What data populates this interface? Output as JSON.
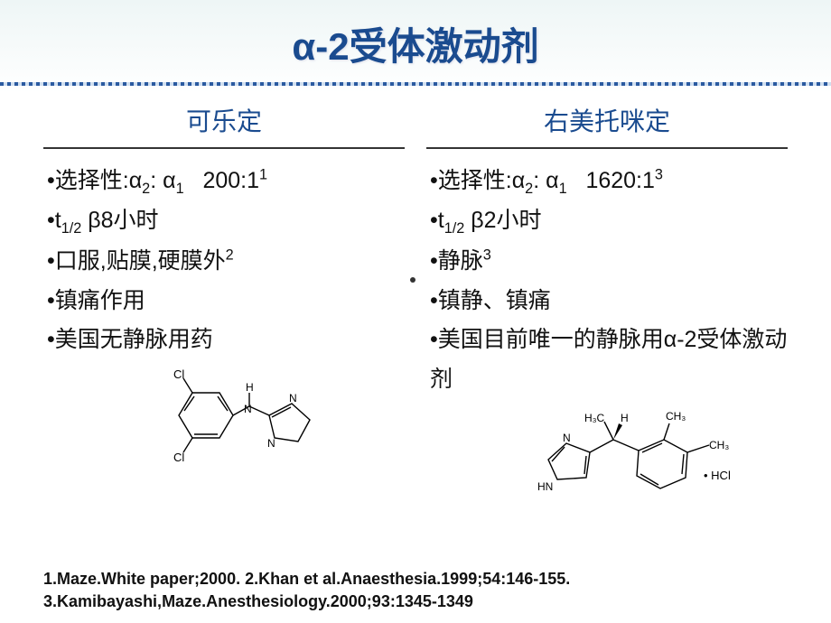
{
  "title": "α-2受体激动剂",
  "columns": {
    "left": {
      "header": "可乐定",
      "items": [
        {
          "pre": "•选择性:α",
          "sub1": "2",
          "mid": ": α",
          "sub2": "1",
          "post": "   200:1",
          "sup": "1"
        },
        {
          "pre": "•t",
          "sub1": "1/2",
          "mid": " β8小时",
          "sub2": "",
          "post": "",
          "sup": ""
        },
        {
          "pre": "•口服,贴膜,硬膜外",
          "sub1": "",
          "mid": "",
          "sub2": "",
          "post": "",
          "sup": "2"
        },
        {
          "pre": "•镇痛作用",
          "sub1": "",
          "mid": "",
          "sub2": "",
          "post": "",
          "sup": ""
        },
        {
          "pre": "•美国无静脉用药",
          "sub1": "",
          "mid": "",
          "sub2": "",
          "post": "",
          "sup": ""
        }
      ]
    },
    "right": {
      "header": "右美托咪定",
      "items": [
        {
          "pre": "•选择性:α",
          "sub1": "2",
          "mid": ": α",
          "sub2": "1",
          "post": "   1620:1",
          "sup": "3"
        },
        {
          "pre": "•t",
          "sub1": "1/2",
          "mid": " β2小时",
          "sub2": "",
          "post": "",
          "sup": ""
        },
        {
          "pre": "•静脉",
          "sub1": "",
          "mid": "",
          "sub2": "",
          "post": "",
          "sup": "3"
        },
        {
          "pre": "•镇静、镇痛",
          "sub1": "",
          "mid": "",
          "sub2": "",
          "post": "",
          "sup": ""
        },
        {
          "pre": "•美国目前唯一的静脉用α-2受体激动剂",
          "sub1": "",
          "mid": "",
          "sub2": "",
          "post": "",
          "sup": ""
        }
      ]
    }
  },
  "structures": {
    "left": {
      "labels": {
        "cl1": "Cl",
        "cl2": "Cl",
        "h": "H",
        "n1": "N",
        "n2": "N",
        "n3": "N"
      },
      "stroke": "#000000",
      "fill": "#ffffff"
    },
    "right": {
      "labels": {
        "ch3a": "H₃C",
        "h": "H",
        "ch3b": "CH₃",
        "ch3c": "CH₃",
        "n": "N",
        "hn": "HN",
        "salt": "• HCl"
      },
      "stroke": "#000000",
      "fill": "#ffffff"
    }
  },
  "references": {
    "line1": "1.Maze.White paper;2000.        2.Khan et al.Anaesthesia.1999;54:146-155.",
    "line2": "3.Kamibayashi,Maze.Anesthesiology.2000;93:1345-1349"
  },
  "colors": {
    "title": "#1a4b8f",
    "text": "#111111",
    "divider_dark": "#2a5aa0",
    "divider_light": "#d0dff0",
    "bg_top": "#eef6f6",
    "bg_bottom": "#ffffff"
  }
}
